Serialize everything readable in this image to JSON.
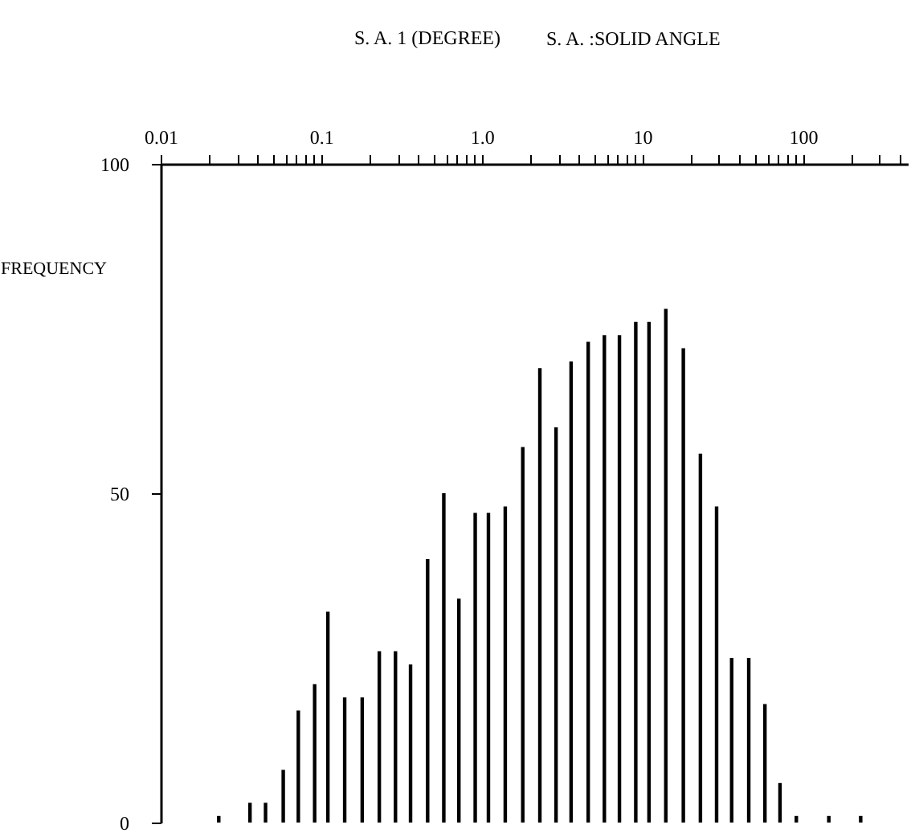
{
  "chart_data": {
    "type": "bar",
    "xlabel": "S. A. 1 (DEGREE)",
    "ylabel": "FREQUENCY",
    "annotations": [
      "S. A. :SOLID ANGLE"
    ],
    "x": [
      0.023,
      0.036,
      0.045,
      0.058,
      0.072,
      0.091,
      0.11,
      0.14,
      0.18,
      0.23,
      0.29,
      0.36,
      0.46,
      0.58,
      0.72,
      0.91,
      1.1,
      1.4,
      1.8,
      2.3,
      2.9,
      3.6,
      4.6,
      5.8,
      7.2,
      9.1,
      11,
      14,
      18,
      23,
      29,
      36,
      46,
      58,
      72,
      91,
      145,
      229
    ],
    "values": [
      1,
      3,
      3,
      8,
      17,
      21,
      32,
      19,
      19,
      26,
      26,
      24,
      40,
      50,
      34,
      47,
      47,
      48,
      57,
      69,
      60,
      70,
      73,
      74,
      74,
      76,
      76,
      78,
      72,
      56,
      48,
      25,
      25,
      18,
      6,
      1,
      1,
      1
    ],
    "color": "#000000",
    "log": "x",
    "xlim": [
      0.01,
      450
    ],
    "xticks": [
      {
        "value": 0.01,
        "label": "0.01"
      },
      {
        "value": 0.02,
        "label": null
      },
      {
        "value": 0.03,
        "label": null
      },
      {
        "value": 0.04,
        "label": null
      },
      {
        "value": 0.05,
        "label": null
      },
      {
        "value": 0.06,
        "label": null
      },
      {
        "value": 0.07,
        "label": null
      },
      {
        "value": 0.08,
        "label": null
      },
      {
        "value": 0.09,
        "label": null
      },
      {
        "value": 0.1,
        "label": "0.1"
      },
      {
        "value": 0.2,
        "label": null
      },
      {
        "value": 0.3,
        "label": null
      },
      {
        "value": 0.4,
        "label": null
      },
      {
        "value": 0.5,
        "label": null
      },
      {
        "value": 0.6,
        "label": null
      },
      {
        "value": 0.7,
        "label": null
      },
      {
        "value": 0.8,
        "label": null
      },
      {
        "value": 0.9,
        "label": null
      },
      {
        "value": 1,
        "label": "1.0"
      },
      {
        "value": 2,
        "label": null
      },
      {
        "value": 3,
        "label": null
      },
      {
        "value": 4,
        "label": null
      },
      {
        "value": 5,
        "label": null
      },
      {
        "value": 6,
        "label": null
      },
      {
        "value": 7,
        "label": null
      },
      {
        "value": 8,
        "label": null
      },
      {
        "value": 9,
        "label": null
      },
      {
        "value": 10,
        "label": "10"
      },
      {
        "value": 20,
        "label": null
      },
      {
        "value": 30,
        "label": null
      },
      {
        "value": 40,
        "label": null
      },
      {
        "value": 50,
        "label": null
      },
      {
        "value": 60,
        "label": null
      },
      {
        "value": 70,
        "label": null
      },
      {
        "value": 80,
        "label": null
      },
      {
        "value": 90,
        "label": null
      },
      {
        "value": 100,
        "label": "100"
      },
      {
        "value": 200,
        "label": null
      },
      {
        "value": 300,
        "label": null
      },
      {
        "value": 400,
        "label": null
      }
    ],
    "ylim": [
      0,
      100
    ],
    "yticks": [
      0,
      50,
      100
    ],
    "grid": false
  }
}
